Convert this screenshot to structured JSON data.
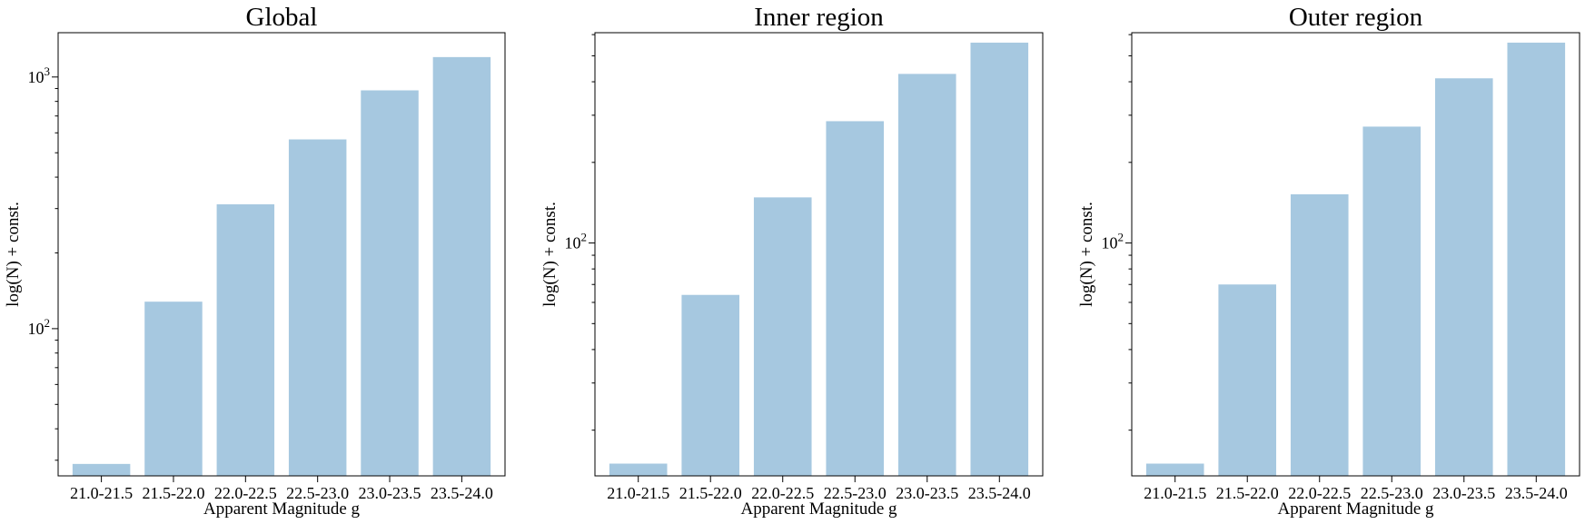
{
  "chart_data": [
    {
      "type": "bar",
      "title": "Global",
      "xlabel": "Apparent Magnitude g",
      "ylabel": "log(N) + const.",
      "yscale": "log",
      "ylim": [
        26,
        1500
      ],
      "categories": [
        "21.0-21.5",
        "21.5-22.0",
        "22.0-22.5",
        "22.5-23.0",
        "23.0-23.5",
        "23.5-24.0"
      ],
      "values": [
        29,
        128,
        312,
        565,
        885,
        1200
      ],
      "ytick_values": [
        100,
        1000
      ],
      "ytick_labels": [
        {
          "base": "10",
          "exp": "2"
        },
        {
          "base": "10",
          "exp": "3"
        }
      ],
      "grid": false,
      "color": "#a6c8e0"
    },
    {
      "type": "bar",
      "title": "Inner region",
      "xlabel": "Apparent Magnitude g",
      "ylabel": "log(N) + const.",
      "yscale": "log",
      "ylim": [
        13.5,
        610
      ],
      "categories": [
        "21.0-21.5",
        "21.5-22.0",
        "22.0-22.5",
        "22.5-23.0",
        "23.0-23.5",
        "23.5-24.0"
      ],
      "values": [
        15,
        64,
        148,
        285,
        428,
        560
      ],
      "ytick_values": [
        100
      ],
      "ytick_labels": [
        {
          "base": "10",
          "exp": "2"
        }
      ],
      "grid": false,
      "color": "#a6c8e0"
    },
    {
      "type": "bar",
      "title": "Outer region",
      "xlabel": "Apparent Magnitude g",
      "ylabel": "log(N) + const.",
      "yscale": "log",
      "ylim": [
        13.5,
        610
      ],
      "categories": [
        "21.0-21.5",
        "21.5-22.0",
        "22.0-22.5",
        "22.5-23.0",
        "23.0-23.5",
        "23.5-24.0"
      ],
      "values": [
        15,
        70,
        152,
        272,
        412,
        560
      ],
      "ytick_values": [
        100
      ],
      "ytick_labels": [
        {
          "base": "10",
          "exp": "2"
        }
      ],
      "grid": false,
      "color": "#a6c8e0"
    }
  ]
}
